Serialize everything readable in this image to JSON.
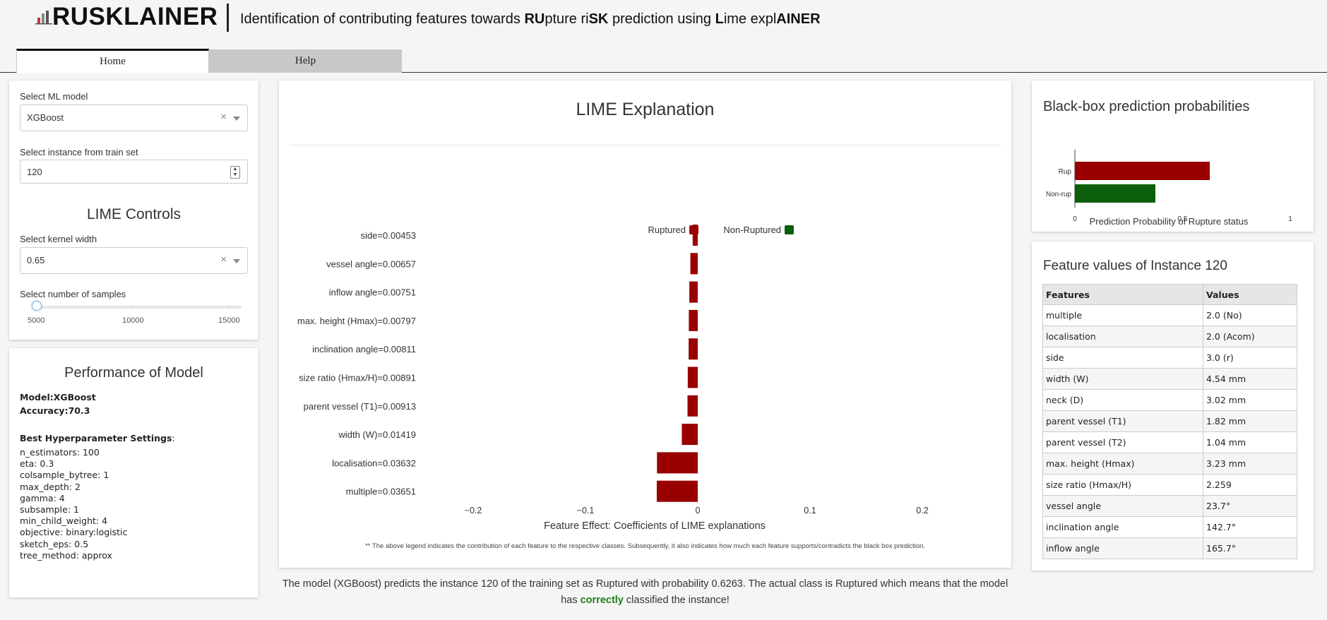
{
  "header": {
    "brand": "RUSKLAINER",
    "subtitle_parts": [
      {
        "t": "Identification of contributing features towards ",
        "b": false
      },
      {
        "t": "RU",
        "b": true
      },
      {
        "t": "pture ri",
        "b": false
      },
      {
        "t": "SK",
        "b": true
      },
      {
        "t": " prediction using ",
        "b": false
      },
      {
        "t": "L",
        "b": true
      },
      {
        "t": "ime expl",
        "b": false
      },
      {
        "t": "AINER",
        "b": true
      }
    ]
  },
  "tabs": [
    {
      "label": "Home",
      "active": true
    },
    {
      "label": "Help",
      "active": false
    }
  ],
  "controls": {
    "model_label": "Select ML model",
    "model_value": "XGBoost",
    "instance_label": "Select instance from train set",
    "instance_value": "120",
    "lime_title": "LIME Controls",
    "kernel_label": "Select kernel width",
    "kernel_value": "0.65",
    "samples_label": "Select number of samples",
    "samples_ticks": [
      "5000",
      "10000",
      "15000"
    ],
    "samples_value": 5000,
    "clear_symbol": "×",
    "spin_up": "▲",
    "spin_down": "▼"
  },
  "performance": {
    "title": "Performance of Model",
    "model_key": "Model",
    "model_val": "XGBoost",
    "accuracy_key": "Accuracy",
    "accuracy_val": "70.3",
    "hyper_title": "Best Hyperparameter Settings",
    "params": [
      "n_estimators: 100",
      "eta: 0.3",
      "colsample_bytree: 1",
      "max_depth: 2",
      "gamma: 4",
      "subsample: 1",
      "min_child_weight: 4",
      "objective: binary:logistic",
      "sketch_eps: 0.5",
      "tree_method: approx"
    ]
  },
  "lime": {
    "title": "LIME Explanation",
    "note": "** The above legend indicates the contribution of each feature to the respective classes. Subsequently, it also indicates how much each feature supports/contradicts the black box prediction."
  },
  "outcome": {
    "line1": "The model (XGBoost) predicts the instance 120 of the training set as Ruptured with probability 0.6263. The actual class is Ruptured which means that the model",
    "pre": "has ",
    "highlight": "correctly",
    "post": " classified the instance!"
  },
  "probabilities": {
    "title": "Black-box prediction probabilities"
  },
  "features_table": {
    "title": "Feature values of Instance 120",
    "headers": [
      "Features",
      "Values"
    ],
    "rows": [
      [
        "multiple",
        "2.0 (No)"
      ],
      [
        "localisation",
        "2.0 (Acom)"
      ],
      [
        "side",
        "3.0 (r)"
      ],
      [
        "width (W)",
        "4.54 mm"
      ],
      [
        "neck (D)",
        "3.02 mm"
      ],
      [
        "parent vessel (T1)",
        "1.82 mm"
      ],
      [
        "parent vessel (T2)",
        "1.04 mm"
      ],
      [
        "max. height (Hmax)",
        "3.23 mm"
      ],
      [
        "size ratio (Hmax/H)",
        "2.259"
      ],
      [
        "vessel angle",
        "23.7°"
      ],
      [
        "inclination angle",
        "142.7°"
      ],
      [
        "inflow angle",
        "165.7°"
      ]
    ]
  },
  "colors": {
    "ruptured": "#990000",
    "non_ruptured": "#0b5f0b",
    "correct": "#1b7d1b"
  },
  "chart_data": [
    {
      "type": "bar",
      "orientation": "horizontal",
      "title": "",
      "categories": [
        "side=0.00453",
        "vessel angle=0.00657",
        "inflow angle=0.00751",
        "max. height (Hmax)=0.00797",
        "inclination angle=0.00811",
        "size ratio (Hmax/H)=0.00891",
        "parent vessel (T1)=0.00913",
        "width (W)=0.01419",
        "localisation=0.03632",
        "multiple=0.03651"
      ],
      "values": [
        -0.00453,
        -0.00657,
        -0.00751,
        -0.00797,
        -0.00811,
        -0.00891,
        -0.00913,
        -0.01419,
        -0.03632,
        -0.03651
      ],
      "classes": [
        "Ruptured",
        "Ruptured",
        "Ruptured",
        "Ruptured",
        "Ruptured",
        "Ruptured",
        "Ruptured",
        "Ruptured",
        "Ruptured",
        "Ruptured"
      ],
      "legend": [
        "Ruptured",
        "Non-Ruptured"
      ],
      "legend_position": "top",
      "xlabel": "Feature Effect: Coefficients of LIME explanations",
      "xlim": [
        -0.2,
        0.2
      ],
      "xticks": [
        -0.2,
        -0.1,
        0,
        0.1,
        0.2
      ],
      "xtick_labels": [
        "−0.2",
        "−0.1",
        "0",
        "0.1",
        "0.2"
      ]
    },
    {
      "type": "bar",
      "orientation": "horizontal",
      "title": "",
      "categories": [
        "Rup",
        "Non-rup"
      ],
      "values": [
        0.6263,
        0.3737
      ],
      "xlabel": "Prediction Probability of Rupture status",
      "xlim": [
        0,
        1
      ],
      "xticks": [
        0,
        0.5,
        1
      ],
      "xtick_labels": [
        "0",
        "0.5",
        "1"
      ]
    }
  ]
}
